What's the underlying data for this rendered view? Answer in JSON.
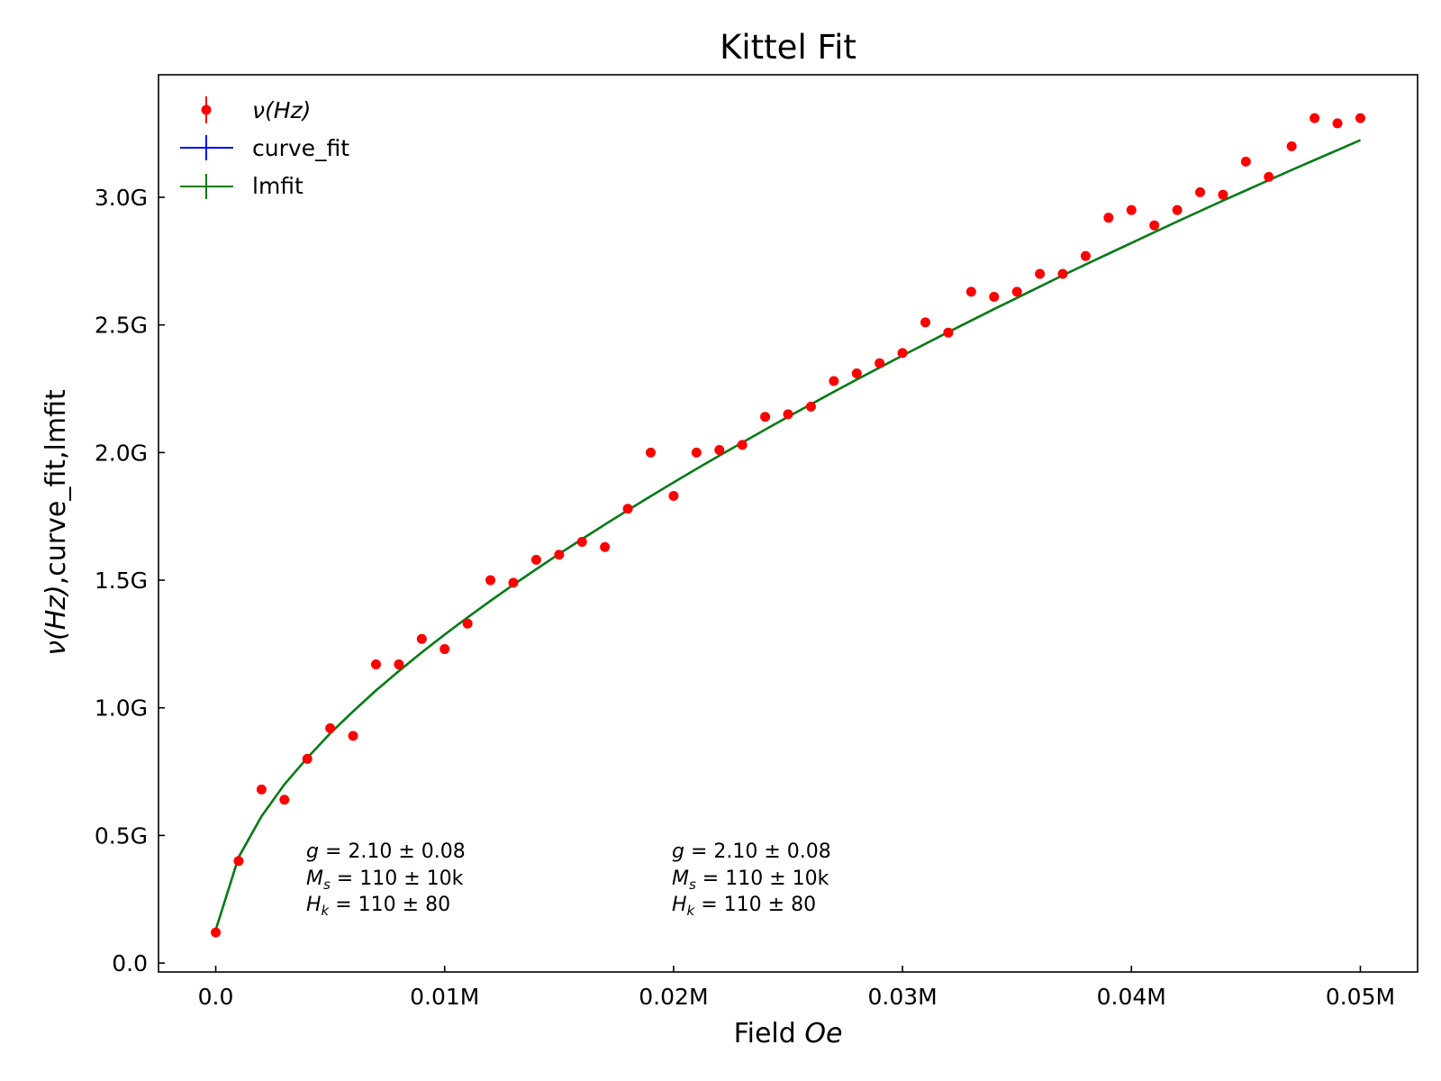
{
  "chart_data": {
    "type": "scatter",
    "title": "Kittel Fit",
    "xlabel": {
      "prefix": "Field ",
      "italic": "Oe",
      "suffix": ""
    },
    "ylabel": {
      "prefix": "",
      "italic": "ν(Hz)",
      "suffix": ",curve_fit,lmfit"
    },
    "xlim": [
      -2500,
      52500
    ],
    "ylim": [
      -35000000,
      3480000000
    ],
    "x_ticks": [
      {
        "value": 0,
        "label": "0.0"
      },
      {
        "value": 10000,
        "label": "0.01M"
      },
      {
        "value": 20000,
        "label": "0.02M"
      },
      {
        "value": 30000,
        "label": "0.03M"
      },
      {
        "value": 40000,
        "label": "0.04M"
      },
      {
        "value": 50000,
        "label": "0.05M"
      }
    ],
    "y_ticks": [
      {
        "value": 0,
        "label": "0.0"
      },
      {
        "value": 500000000,
        "label": "0.5G"
      },
      {
        "value": 1000000000,
        "label": "1.0G"
      },
      {
        "value": 1500000000,
        "label": "1.5G"
      },
      {
        "value": 2000000000,
        "label": "2.0G"
      },
      {
        "value": 2500000000,
        "label": "2.5G"
      },
      {
        "value": 3000000000,
        "label": "3.0G"
      }
    ],
    "grid": false,
    "legend_position": "top-left",
    "series": [
      {
        "name": "ν(Hz)",
        "kind": "points",
        "color": "#ff0000",
        "x": [
          0,
          1000,
          2000,
          3000,
          4000,
          5000,
          6000,
          7000,
          8000,
          9000,
          10000,
          11000,
          12000,
          13000,
          14000,
          15000,
          16000,
          17000,
          18000,
          19000,
          20000,
          21000,
          22000,
          23000,
          24000,
          25000,
          26000,
          27000,
          28000,
          29000,
          30000,
          31000,
          32000,
          33000,
          34000,
          35000,
          36000,
          37000,
          38000,
          39000,
          40000,
          41000,
          42000,
          43000,
          44000,
          45000,
          46000,
          47000,
          48000,
          49000,
          50000
        ],
        "y": [
          120000000,
          400000000,
          680000000,
          640000000,
          800000000,
          920000000,
          890000000,
          1170000000,
          1170000000,
          1270000000,
          1230000000,
          1330000000,
          1500000000,
          1490000000,
          1580000000,
          1600000000,
          1650000000,
          1630000000,
          1780000000,
          2000000000,
          1830000000,
          2000000000,
          2010000000,
          2030000000,
          2140000000,
          2150000000,
          2180000000,
          2280000000,
          2310000000,
          2350000000,
          2390000000,
          2510000000,
          2470000000,
          2630000000,
          2610000000,
          2630000000,
          2700000000,
          2700000000,
          2770000000,
          2920000000,
          2950000000,
          2890000000,
          2950000000,
          3020000000,
          3010000000,
          3140000000,
          3080000000,
          3200000000,
          3310000000,
          3290000000,
          3310000000
        ]
      },
      {
        "name": "curve_fit",
        "kind": "line",
        "color": "#0000ff",
        "x": [
          0,
          1000,
          2000,
          3000,
          4000,
          5000,
          6000,
          7000,
          8000,
          9000,
          10000,
          11000,
          12000,
          13000,
          14000,
          15000,
          16000,
          17000,
          18000,
          19000,
          20000,
          21000,
          22000,
          23000,
          24000,
          25000,
          26000,
          27000,
          28000,
          29000,
          30000,
          31000,
          32000,
          33000,
          34000,
          35000,
          36000,
          37000,
          38000,
          39000,
          40000,
          41000,
          42000,
          43000,
          44000,
          45000,
          46000,
          47000,
          48000,
          49000,
          50000
        ],
        "y": [
          130000000,
          415000000,
          575000000,
          700000000,
          804000000,
          900000000,
          986000000,
          1068000000,
          1144000000,
          1217000000,
          1287000000,
          1354000000,
          1419000000,
          1482000000,
          1543000000,
          1603000000,
          1661000000,
          1718000000,
          1774000000,
          1829000000,
          1883000000,
          1936000000,
          1988000000,
          2039000000,
          2090000000,
          2140000000,
          2189000000,
          2238000000,
          2286000000,
          2333000000,
          2380000000,
          2426000000,
          2472000000,
          2517000000,
          2562000000,
          2606000000,
          2650000000,
          2694000000,
          2737000000,
          2779000000,
          2821000000,
          2863000000,
          2905000000,
          2946000000,
          2987000000,
          3027000000,
          3067000000,
          3107000000,
          3146000000,
          3185000000,
          3224000000
        ]
      },
      {
        "name": "lmfit",
        "kind": "line",
        "color": "#008000",
        "x": [
          0,
          1000,
          2000,
          3000,
          4000,
          5000,
          6000,
          7000,
          8000,
          9000,
          10000,
          11000,
          12000,
          13000,
          14000,
          15000,
          16000,
          17000,
          18000,
          19000,
          20000,
          21000,
          22000,
          23000,
          24000,
          25000,
          26000,
          27000,
          28000,
          29000,
          30000,
          31000,
          32000,
          33000,
          34000,
          35000,
          36000,
          37000,
          38000,
          39000,
          40000,
          41000,
          42000,
          43000,
          44000,
          45000,
          46000,
          47000,
          48000,
          49000,
          50000
        ],
        "y": [
          130000000,
          415000000,
          575000000,
          700000000,
          804000000,
          900000000,
          986000000,
          1068000000,
          1144000000,
          1217000000,
          1287000000,
          1354000000,
          1419000000,
          1482000000,
          1543000000,
          1603000000,
          1661000000,
          1718000000,
          1774000000,
          1829000000,
          1883000000,
          1936000000,
          1988000000,
          2039000000,
          2090000000,
          2140000000,
          2189000000,
          2238000000,
          2286000000,
          2333000000,
          2380000000,
          2426000000,
          2472000000,
          2517000000,
          2562000000,
          2606000000,
          2650000000,
          2694000000,
          2737000000,
          2779000000,
          2821000000,
          2863000000,
          2905000000,
          2946000000,
          2987000000,
          3027000000,
          3067000000,
          3107000000,
          3146000000,
          3185000000,
          3224000000
        ]
      }
    ],
    "annotations": [
      {
        "id": "left",
        "lines": [
          {
            "sym": "g",
            "sub": "",
            "text": " = 2.10 ± 0.08"
          },
          {
            "sym": "M",
            "sub": "s",
            "text": " = 110 ± 10k"
          },
          {
            "sym": "H",
            "sub": "k",
            "text": " = 110 ± 80"
          }
        ]
      },
      {
        "id": "right",
        "lines": [
          {
            "sym": "g",
            "sub": "",
            "text": " = 2.10 ± 0.08"
          },
          {
            "sym": "M",
            "sub": "s",
            "text": " = 110 ± 10k"
          },
          {
            "sym": "H",
            "sub": "k",
            "text": " = 110 ± 80"
          }
        ]
      }
    ]
  }
}
